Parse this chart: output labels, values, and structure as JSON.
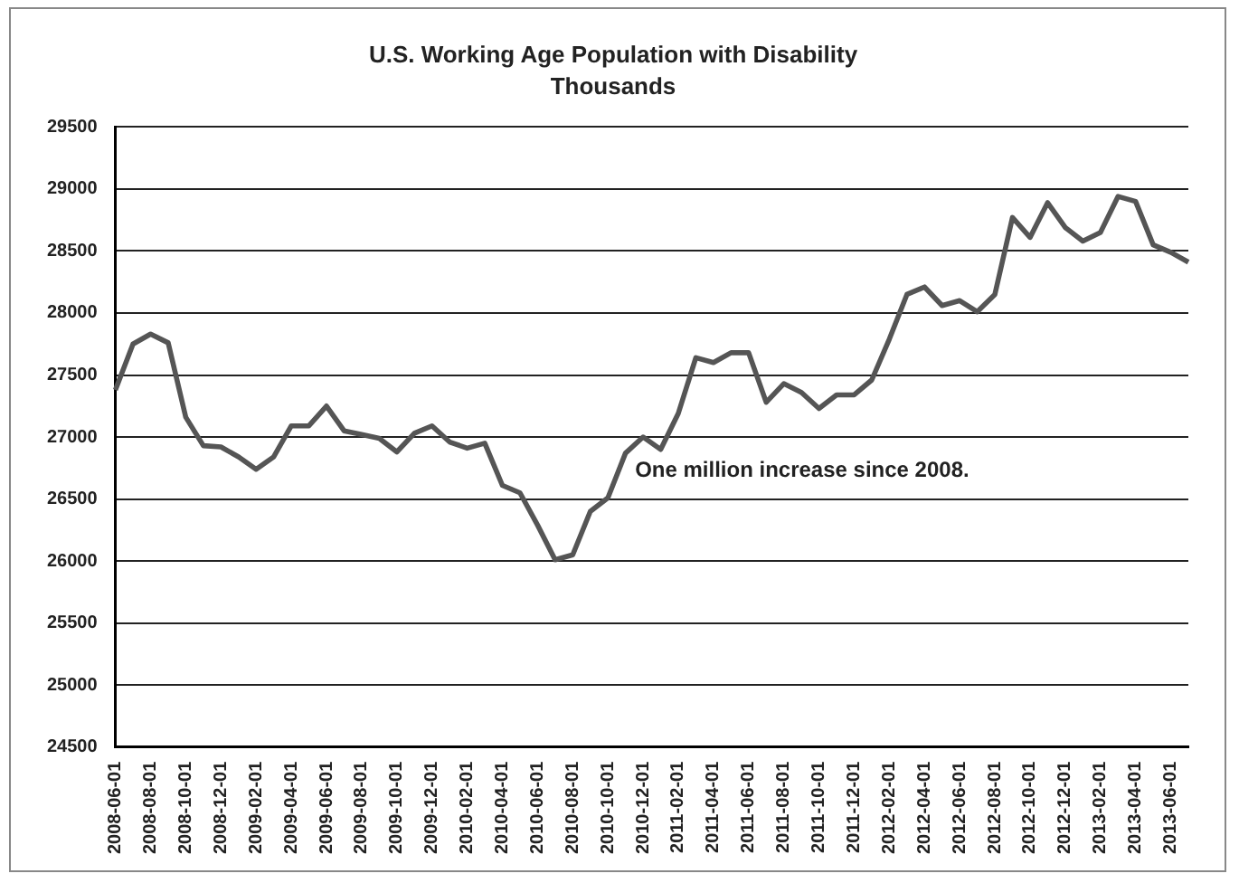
{
  "chart_data": {
    "type": "line",
    "title": "U.S. Working Age Population with Disability",
    "subtitle": "Thousands",
    "categories": [
      "2008-06-01",
      null,
      "2008-08-01",
      null,
      "2008-10-01",
      null,
      "2008-12-01",
      null,
      "2009-02-01",
      null,
      "2009-04-01",
      null,
      "2009-06-01",
      null,
      "2009-08-01",
      null,
      "2009-10-01",
      null,
      "2009-12-01",
      null,
      "2010-02-01",
      null,
      "2010-04-01",
      null,
      "2010-06-01",
      null,
      "2010-08-01",
      null,
      "2010-10-01",
      null,
      "2010-12-01",
      null,
      "2011-02-01",
      null,
      "2011-04-01",
      null,
      "2011-06-01",
      null,
      "2011-08-01",
      null,
      "2011-10-01",
      null,
      "2011-12-01",
      null,
      "2012-02-01",
      null,
      "2012-04-01",
      null,
      "2012-06-01",
      null,
      "2012-08-01",
      null,
      "2012-10-01",
      null,
      "2012-12-01",
      null,
      "2013-02-01",
      null,
      "2013-04-01",
      null,
      "2013-06-01",
      null
    ],
    "series": [
      {
        "color": "#555555",
        "values": [
          27380,
          27750,
          27830,
          27760,
          27160,
          26930,
          26920,
          26840,
          26740,
          26840,
          27090,
          27090,
          27250,
          27050,
          27020,
          26990,
          26880,
          27030,
          27090,
          26960,
          26910,
          26950,
          26610,
          26550,
          26290,
          26010,
          26050,
          26400,
          26510,
          26870,
          27000,
          26900,
          27190,
          27640,
          27600,
          27680,
          27680,
          27280,
          27430,
          27360,
          27230,
          27340,
          27340,
          27460,
          27790,
          28150,
          28210,
          28060,
          28100,
          28010,
          28150,
          28770,
          28610,
          28890,
          28690,
          28580,
          28650,
          28940,
          28900,
          28550,
          28490,
          28410
        ]
      }
    ],
    "ylim": [
      24500,
      29500
    ],
    "yticks": [
      24500,
      25000,
      25500,
      26000,
      26500,
      27000,
      27500,
      28000,
      28500,
      29000,
      29500
    ],
    "grid": "y",
    "legend": false,
    "marker": "none",
    "line_style": "solid",
    "annotations": [
      "One million increase since 2008."
    ]
  }
}
